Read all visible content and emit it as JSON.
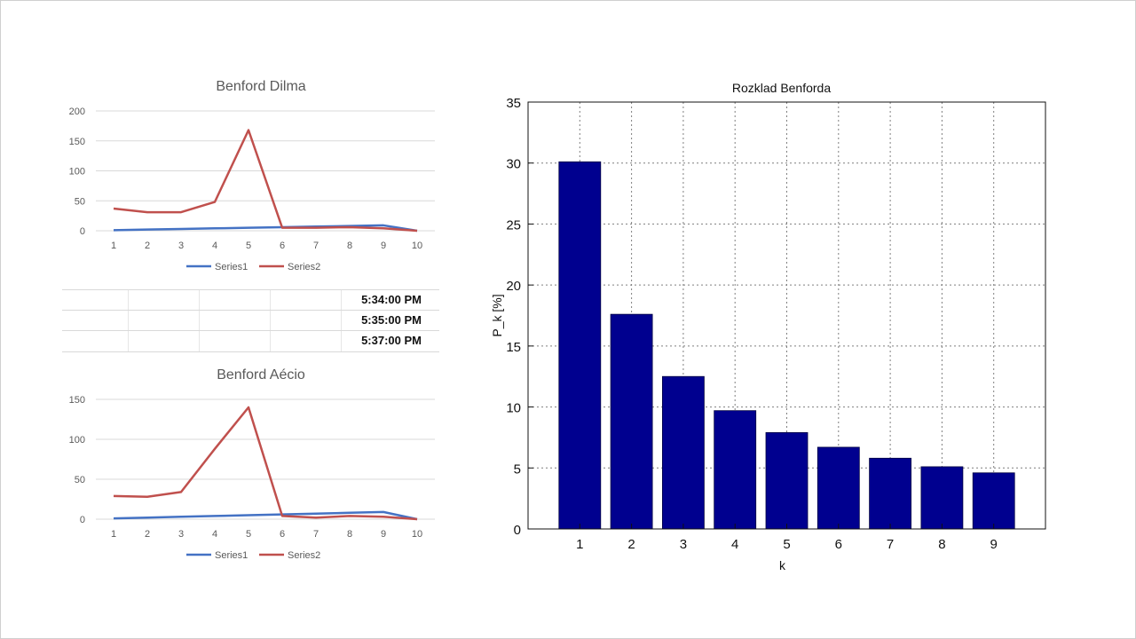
{
  "chart_data": [
    {
      "type": "line",
      "title": "Benford Dilma",
      "categories": [
        "1",
        "2",
        "3",
        "4",
        "5",
        "6",
        "7",
        "8",
        "9",
        "10"
      ],
      "yticks": [
        0,
        50,
        100,
        150,
        200
      ],
      "ylim": [
        0,
        200
      ],
      "series": [
        {
          "name": "Series1",
          "color": "#4472c4",
          "values": [
            1,
            2,
            3,
            4,
            5,
            6,
            7,
            8,
            9,
            0
          ]
        },
        {
          "name": "Series2",
          "color": "#c0504d",
          "values": [
            37,
            31,
            31,
            48,
            168,
            5,
            5,
            6,
            4,
            0
          ]
        }
      ],
      "legend": "bottom",
      "grid": true
    },
    {
      "type": "line",
      "title": "Benford Aécio",
      "categories": [
        "1",
        "2",
        "3",
        "4",
        "5",
        "6",
        "7",
        "8",
        "9",
        "10"
      ],
      "yticks": [
        0,
        50,
        100,
        150
      ],
      "ylim": [
        0,
        150
      ],
      "series": [
        {
          "name": "Series1",
          "color": "#4472c4",
          "values": [
            1,
            2,
            3,
            4,
            5,
            6,
            7,
            8,
            9,
            0
          ]
        },
        {
          "name": "Series2",
          "color": "#c0504d",
          "values": [
            29,
            28,
            34,
            88,
            140,
            4,
            2,
            4,
            3,
            0
          ]
        }
      ],
      "legend": "bottom",
      "grid": true
    },
    {
      "type": "bar",
      "title": "Rozklad Benforda",
      "categories": [
        "1",
        "2",
        "3",
        "4",
        "5",
        "6",
        "7",
        "8",
        "9"
      ],
      "values": [
        30.1,
        17.6,
        12.5,
        9.7,
        7.9,
        6.7,
        5.8,
        5.1,
        4.6
      ],
      "xlabel": "k",
      "ylabel": "P_k [%]",
      "yticks": [
        0,
        5,
        10,
        15,
        20,
        25,
        30,
        35
      ],
      "ylim": [
        0,
        35
      ],
      "bar_color": "#00008f",
      "grid": true
    }
  ],
  "time_table": [
    "5:34:00 PM",
    "5:35:00 PM",
    "5:37:00 PM"
  ]
}
